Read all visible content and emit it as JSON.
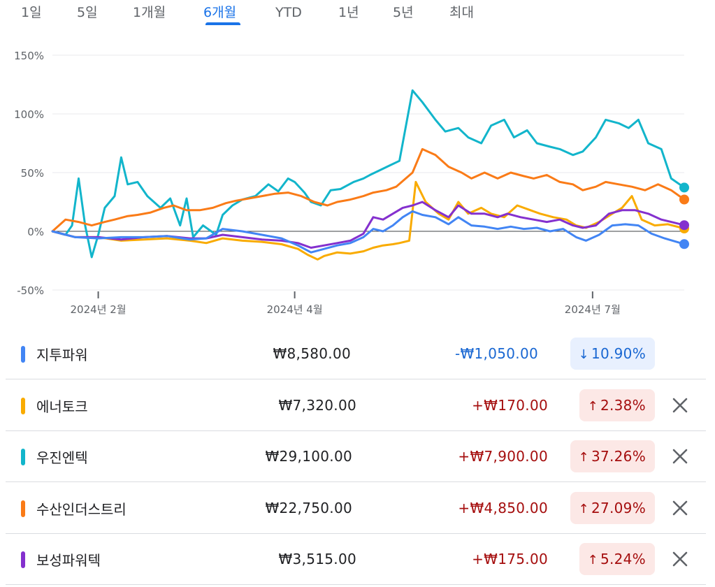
{
  "tabs": [
    {
      "label": "1일",
      "active": false
    },
    {
      "label": "5일",
      "active": false
    },
    {
      "label": "1개월",
      "active": false
    },
    {
      "label": "6개월",
      "active": true
    },
    {
      "label": "YTD",
      "active": false
    },
    {
      "label": "1년",
      "active": false
    },
    {
      "label": "5년",
      "active": false
    },
    {
      "label": "최대",
      "active": false
    }
  ],
  "colors": {
    "up_text": "#a50e0e",
    "up_bg": "#fce8e6",
    "down_text": "#1967d2",
    "down_bg": "#e8f0fe"
  },
  "chart_data": {
    "type": "line",
    "y_ticks": [
      "150%",
      "100%",
      "50%",
      "0%",
      "-50%"
    ],
    "ylim": [
      -50,
      150
    ],
    "x_ticks": [
      {
        "label": "2024년 2월",
        "date": "2024-02-01"
      },
      {
        "label": "2024년 4월",
        "date": "2024-04-01"
      },
      {
        "label": "2024년 7월",
        "date": "2024-07-01"
      }
    ],
    "x_range": [
      "2024-01-18",
      "2024-07-29"
    ],
    "grid": true,
    "series": [
      {
        "name": "우진엔텍",
        "color": "#12b5cb",
        "points": [
          [
            "2024-01-18",
            0
          ],
          [
            "2024-01-22",
            -3
          ],
          [
            "2024-01-24",
            5
          ],
          [
            "2024-01-26",
            45
          ],
          [
            "2024-01-28",
            5
          ],
          [
            "2024-01-30",
            -22
          ],
          [
            "2024-02-01",
            -3
          ],
          [
            "2024-02-03",
            20
          ],
          [
            "2024-02-06",
            30
          ],
          [
            "2024-02-08",
            63
          ],
          [
            "2024-02-10",
            40
          ],
          [
            "2024-02-13",
            42
          ],
          [
            "2024-02-16",
            30
          ],
          [
            "2024-02-20",
            20
          ],
          [
            "2024-02-23",
            28
          ],
          [
            "2024-02-26",
            5
          ],
          [
            "2024-02-28",
            28
          ],
          [
            "2024-03-01",
            -5
          ],
          [
            "2024-03-04",
            5
          ],
          [
            "2024-03-08",
            -3
          ],
          [
            "2024-03-10",
            14
          ],
          [
            "2024-03-13",
            22
          ],
          [
            "2024-03-16",
            27
          ],
          [
            "2024-03-20",
            30
          ],
          [
            "2024-03-24",
            40
          ],
          [
            "2024-03-27",
            34
          ],
          [
            "2024-03-30",
            45
          ],
          [
            "2024-04-01",
            42
          ],
          [
            "2024-04-04",
            33
          ],
          [
            "2024-04-06",
            25
          ],
          [
            "2024-04-09",
            22
          ],
          [
            "2024-04-12",
            35
          ],
          [
            "2024-04-15",
            36
          ],
          [
            "2024-04-19",
            42
          ],
          [
            "2024-04-22",
            45
          ],
          [
            "2024-04-24",
            48
          ],
          [
            "2024-04-27",
            52
          ],
          [
            "2024-04-30",
            56
          ],
          [
            "2024-05-03",
            60
          ],
          [
            "2024-05-07",
            120
          ],
          [
            "2024-05-10",
            110
          ],
          [
            "2024-05-14",
            95
          ],
          [
            "2024-05-17",
            85
          ],
          [
            "2024-05-21",
            88
          ],
          [
            "2024-05-24",
            80
          ],
          [
            "2024-05-28",
            75
          ],
          [
            "2024-05-31",
            90
          ],
          [
            "2024-06-04",
            95
          ],
          [
            "2024-06-07",
            80
          ],
          [
            "2024-06-11",
            86
          ],
          [
            "2024-06-14",
            75
          ],
          [
            "2024-06-18",
            72
          ],
          [
            "2024-06-21",
            70
          ],
          [
            "2024-06-25",
            65
          ],
          [
            "2024-06-28",
            68
          ],
          [
            "2024-07-02",
            80
          ],
          [
            "2024-07-05",
            95
          ],
          [
            "2024-07-09",
            92
          ],
          [
            "2024-07-12",
            88
          ],
          [
            "2024-07-15",
            95
          ],
          [
            "2024-07-18",
            75
          ],
          [
            "2024-07-22",
            70
          ],
          [
            "2024-07-25",
            45
          ],
          [
            "2024-07-29",
            37.26
          ]
        ]
      },
      {
        "name": "수산인더스트리",
        "color": "#fa7b17",
        "points": [
          [
            "2024-01-18",
            0
          ],
          [
            "2024-01-22",
            10
          ],
          [
            "2024-01-26",
            8
          ],
          [
            "2024-01-30",
            5
          ],
          [
            "2024-02-03",
            8
          ],
          [
            "2024-02-06",
            10
          ],
          [
            "2024-02-10",
            13
          ],
          [
            "2024-02-13",
            14
          ],
          [
            "2024-02-17",
            16
          ],
          [
            "2024-02-21",
            20
          ],
          [
            "2024-02-24",
            22
          ],
          [
            "2024-02-28",
            18
          ],
          [
            "2024-03-03",
            18
          ],
          [
            "2024-03-07",
            20
          ],
          [
            "2024-03-11",
            24
          ],
          [
            "2024-03-14",
            26
          ],
          [
            "2024-03-18",
            28
          ],
          [
            "2024-03-22",
            30
          ],
          [
            "2024-03-26",
            32
          ],
          [
            "2024-03-30",
            33
          ],
          [
            "2024-04-03",
            30
          ],
          [
            "2024-04-07",
            25
          ],
          [
            "2024-04-11",
            22
          ],
          [
            "2024-04-14",
            25
          ],
          [
            "2024-04-18",
            27
          ],
          [
            "2024-04-22",
            30
          ],
          [
            "2024-04-25",
            33
          ],
          [
            "2024-04-29",
            35
          ],
          [
            "2024-05-02",
            38
          ],
          [
            "2024-05-07",
            50
          ],
          [
            "2024-05-10",
            70
          ],
          [
            "2024-05-14",
            65
          ],
          [
            "2024-05-18",
            55
          ],
          [
            "2024-05-22",
            50
          ],
          [
            "2024-05-25",
            45
          ],
          [
            "2024-05-29",
            50
          ],
          [
            "2024-06-02",
            45
          ],
          [
            "2024-06-06",
            50
          ],
          [
            "2024-06-10",
            47
          ],
          [
            "2024-06-13",
            45
          ],
          [
            "2024-06-17",
            48
          ],
          [
            "2024-06-21",
            42
          ],
          [
            "2024-06-25",
            40
          ],
          [
            "2024-06-28",
            35
          ],
          [
            "2024-07-02",
            38
          ],
          [
            "2024-07-05",
            42
          ],
          [
            "2024-07-09",
            40
          ],
          [
            "2024-07-13",
            38
          ],
          [
            "2024-07-17",
            35
          ],
          [
            "2024-07-21",
            40
          ],
          [
            "2024-07-25",
            35
          ],
          [
            "2024-07-29",
            27.09
          ]
        ]
      },
      {
        "name": "에너토크",
        "color": "#f9ab00",
        "points": [
          [
            "2024-01-18",
            0
          ],
          [
            "2024-01-25",
            -5
          ],
          [
            "2024-02-01",
            -5
          ],
          [
            "2024-02-08",
            -8
          ],
          [
            "2024-02-15",
            -7
          ],
          [
            "2024-02-22",
            -6
          ],
          [
            "2024-02-29",
            -8
          ],
          [
            "2024-03-05",
            -10
          ],
          [
            "2024-03-10",
            -6
          ],
          [
            "2024-03-16",
            -8
          ],
          [
            "2024-03-22",
            -9
          ],
          [
            "2024-03-28",
            -11
          ],
          [
            "2024-04-02",
            -15
          ],
          [
            "2024-04-05",
            -20
          ],
          [
            "2024-04-08",
            -24
          ],
          [
            "2024-04-10",
            -21
          ],
          [
            "2024-04-14",
            -18
          ],
          [
            "2024-04-18",
            -19
          ],
          [
            "2024-04-22",
            -17
          ],
          [
            "2024-04-25",
            -14
          ],
          [
            "2024-04-28",
            -12
          ],
          [
            "2024-05-01",
            -11
          ],
          [
            "2024-05-03",
            -10
          ],
          [
            "2024-05-06",
            -8
          ],
          [
            "2024-05-08",
            42
          ],
          [
            "2024-05-11",
            25
          ],
          [
            "2024-05-15",
            15
          ],
          [
            "2024-05-18",
            10
          ],
          [
            "2024-05-21",
            25
          ],
          [
            "2024-05-24",
            15
          ],
          [
            "2024-05-28",
            20
          ],
          [
            "2024-05-31",
            15
          ],
          [
            "2024-06-04",
            12
          ],
          [
            "2024-06-08",
            22
          ],
          [
            "2024-06-12",
            18
          ],
          [
            "2024-06-15",
            15
          ],
          [
            "2024-06-19",
            12
          ],
          [
            "2024-06-23",
            10
          ],
          [
            "2024-06-26",
            5
          ],
          [
            "2024-06-29",
            3
          ],
          [
            "2024-07-03",
            8
          ],
          [
            "2024-07-07",
            15
          ],
          [
            "2024-07-10",
            20
          ],
          [
            "2024-07-13",
            30
          ],
          [
            "2024-07-16",
            10
          ],
          [
            "2024-07-20",
            5
          ],
          [
            "2024-07-24",
            6
          ],
          [
            "2024-07-29",
            2.38
          ]
        ]
      },
      {
        "name": "보성파워텍",
        "color": "#8430ce",
        "points": [
          [
            "2024-01-18",
            0
          ],
          [
            "2024-01-25",
            -5
          ],
          [
            "2024-02-01",
            -5
          ],
          [
            "2024-02-08",
            -7
          ],
          [
            "2024-02-15",
            -5
          ],
          [
            "2024-02-22",
            -4
          ],
          [
            "2024-02-29",
            -6
          ],
          [
            "2024-03-05",
            -6
          ],
          [
            "2024-03-10",
            -3
          ],
          [
            "2024-03-16",
            -5
          ],
          [
            "2024-03-22",
            -7
          ],
          [
            "2024-03-28",
            -8
          ],
          [
            "2024-04-02",
            -10
          ],
          [
            "2024-04-06",
            -14
          ],
          [
            "2024-04-10",
            -12
          ],
          [
            "2024-04-14",
            -10
          ],
          [
            "2024-04-18",
            -8
          ],
          [
            "2024-04-22",
            -2
          ],
          [
            "2024-04-25",
            12
          ],
          [
            "2024-04-28",
            10
          ],
          [
            "2024-05-01",
            15
          ],
          [
            "2024-05-04",
            20
          ],
          [
            "2024-05-07",
            22
          ],
          [
            "2024-05-10",
            25
          ],
          [
            "2024-05-14",
            18
          ],
          [
            "2024-05-18",
            12
          ],
          [
            "2024-05-21",
            22
          ],
          [
            "2024-05-25",
            15
          ],
          [
            "2024-05-29",
            15
          ],
          [
            "2024-06-02",
            12
          ],
          [
            "2024-06-05",
            15
          ],
          [
            "2024-06-09",
            12
          ],
          [
            "2024-06-13",
            10
          ],
          [
            "2024-06-17",
            8
          ],
          [
            "2024-06-21",
            10
          ],
          [
            "2024-06-25",
            5
          ],
          [
            "2024-06-28",
            3
          ],
          [
            "2024-07-02",
            5
          ],
          [
            "2024-07-06",
            15
          ],
          [
            "2024-07-10",
            18
          ],
          [
            "2024-07-14",
            18
          ],
          [
            "2024-07-18",
            15
          ],
          [
            "2024-07-22",
            10
          ],
          [
            "2024-07-25",
            8
          ],
          [
            "2024-07-29",
            5.24
          ]
        ]
      },
      {
        "name": "지투파워",
        "color": "#4285f4",
        "points": [
          [
            "2024-01-18",
            0
          ],
          [
            "2024-01-25",
            -5
          ],
          [
            "2024-02-01",
            -6
          ],
          [
            "2024-02-08",
            -5
          ],
          [
            "2024-02-15",
            -5
          ],
          [
            "2024-02-22",
            -4
          ],
          [
            "2024-02-29",
            -7
          ],
          [
            "2024-03-05",
            -6
          ],
          [
            "2024-03-10",
            2
          ],
          [
            "2024-03-16",
            0
          ],
          [
            "2024-03-22",
            -3
          ],
          [
            "2024-03-28",
            -6
          ],
          [
            "2024-04-02",
            -12
          ],
          [
            "2024-04-06",
            -18
          ],
          [
            "2024-04-10",
            -15
          ],
          [
            "2024-04-14",
            -12
          ],
          [
            "2024-04-18",
            -10
          ],
          [
            "2024-04-22",
            -5
          ],
          [
            "2024-04-25",
            2
          ],
          [
            "2024-04-28",
            0
          ],
          [
            "2024-05-01",
            5
          ],
          [
            "2024-05-04",
            12
          ],
          [
            "2024-05-07",
            17
          ],
          [
            "2024-05-10",
            14
          ],
          [
            "2024-05-14",
            12
          ],
          [
            "2024-05-18",
            6
          ],
          [
            "2024-05-21",
            12
          ],
          [
            "2024-05-25",
            5
          ],
          [
            "2024-05-29",
            4
          ],
          [
            "2024-06-02",
            2
          ],
          [
            "2024-06-06",
            4
          ],
          [
            "2024-06-10",
            2
          ],
          [
            "2024-06-14",
            3
          ],
          [
            "2024-06-18",
            0
          ],
          [
            "2024-06-22",
            2
          ],
          [
            "2024-06-26",
            -5
          ],
          [
            "2024-06-29",
            -8
          ],
          [
            "2024-07-03",
            -3
          ],
          [
            "2024-07-07",
            5
          ],
          [
            "2024-07-11",
            6
          ],
          [
            "2024-07-15",
            5
          ],
          [
            "2024-07-19",
            -2
          ],
          [
            "2024-07-23",
            -6
          ],
          [
            "2024-07-29",
            -10.9
          ]
        ]
      }
    ]
  },
  "stocks": [
    {
      "name": "지투파워",
      "color": "#4285f4",
      "price": "₩8,580.00",
      "change": "-₩1,050.00",
      "percent": "10.90%",
      "direction": "down",
      "removable": false
    },
    {
      "name": "에너토크",
      "color": "#f9ab00",
      "price": "₩7,320.00",
      "change": "+₩170.00",
      "percent": "2.38%",
      "direction": "up",
      "removable": true
    },
    {
      "name": "우진엔텍",
      "color": "#12b5cb",
      "price": "₩29,100.00",
      "change": "+₩7,900.00",
      "percent": "37.26%",
      "direction": "up",
      "removable": true
    },
    {
      "name": "수산인더스트리",
      "color": "#fa7b17",
      "price": "₩22,750.00",
      "change": "+₩4,850.00",
      "percent": "27.09%",
      "direction": "up",
      "removable": true
    },
    {
      "name": "보성파워텍",
      "color": "#8430ce",
      "price": "₩3,515.00",
      "change": "+₩175.00",
      "percent": "5.24%",
      "direction": "up",
      "removable": true
    }
  ]
}
